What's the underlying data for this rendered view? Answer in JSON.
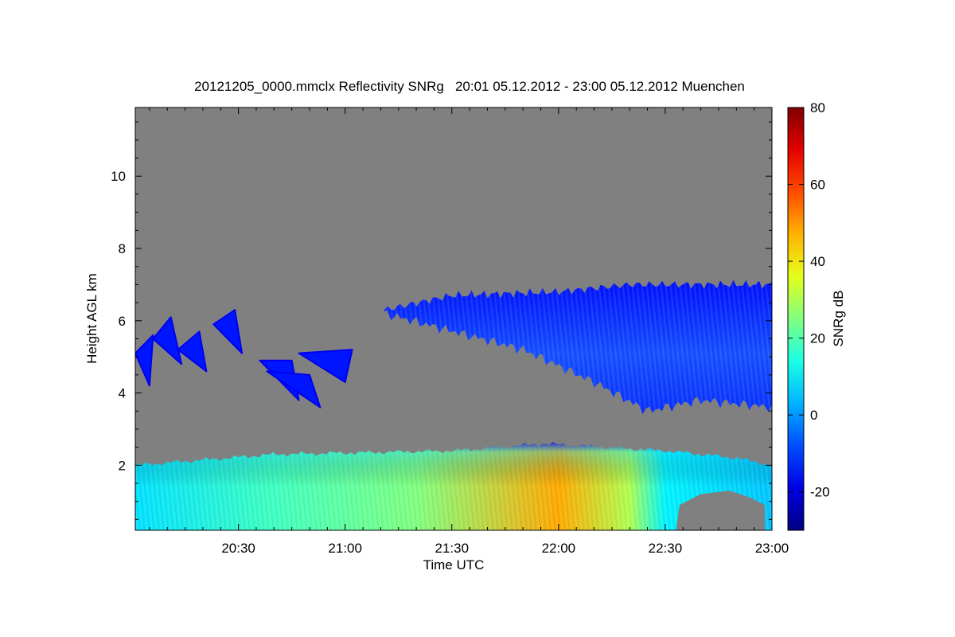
{
  "chart_data": {
    "type": "heatmap",
    "title": "20121205_0000.mmclx Reflectivity SNRg   20:01 05.12.2012 - 23:00 05.12.2012 Muenchen",
    "xlabel": "Time UTC",
    "ylabel": "Height AGL km",
    "colorbar_label": "SNRg dB",
    "x_range_minutes_utc": [
      1201,
      1380
    ],
    "y_range_km": [
      0.2,
      11.9
    ],
    "x_ticks": [
      {
        "value": 1230,
        "label": "20:30"
      },
      {
        "value": 1260,
        "label": "21:00"
      },
      {
        "value": 1290,
        "label": "21:30"
      },
      {
        "value": 1320,
        "label": "22:00"
      },
      {
        "value": 1350,
        "label": "22:30"
      },
      {
        "value": 1380,
        "label": "23:00"
      }
    ],
    "y_ticks": [
      {
        "value": 2,
        "label": "2"
      },
      {
        "value": 4,
        "label": "4"
      },
      {
        "value": 6,
        "label": "6"
      },
      {
        "value": 8,
        "label": "8"
      },
      {
        "value": 10,
        "label": "10"
      }
    ],
    "colorbar_range": [
      -30,
      80
    ],
    "colorbar_ticks": [
      {
        "value": -20,
        "label": "-20"
      },
      {
        "value": 0,
        "label": "0"
      },
      {
        "value": 20,
        "label": "20"
      },
      {
        "value": 40,
        "label": "40"
      },
      {
        "value": 60,
        "label": "60"
      },
      {
        "value": 80,
        "label": "80"
      }
    ],
    "colormap": "jet",
    "background_color": "#808080",
    "features": [
      {
        "name": "low-level echo layer",
        "time_from": 1201,
        "time_to": 1380,
        "top_km": [
          [
            1201,
            2.0
          ],
          [
            1240,
            2.3
          ],
          [
            1290,
            2.4
          ],
          [
            1316,
            2.6
          ],
          [
            1350,
            2.4
          ],
          [
            1370,
            2.2
          ],
          [
            1380,
            2.0
          ]
        ],
        "snr_db": [
          [
            1201,
            8
          ],
          [
            1240,
            18
          ],
          [
            1280,
            25
          ],
          [
            1320,
            48
          ],
          [
            1340,
            30
          ],
          [
            1350,
            10
          ],
          [
            1380,
            5
          ]
        ]
      },
      {
        "name": "mid-level cloud",
        "time_from": 1271,
        "time_to": 1380,
        "top_km": [
          [
            1271,
            6.3
          ],
          [
            1290,
            6.7
          ],
          [
            1320,
            6.8
          ],
          [
            1340,
            7.0
          ],
          [
            1380,
            7.0
          ]
        ],
        "base_km": [
          [
            1271,
            6.2
          ],
          [
            1310,
            5.2
          ],
          [
            1330,
            4.3
          ],
          [
            1345,
            3.5
          ],
          [
            1360,
            3.8
          ],
          [
            1380,
            3.6
          ]
        ],
        "snr_db": [
          [
            1271,
            -15
          ],
          [
            1330,
            -5
          ],
          [
            1370,
            -10
          ]
        ]
      },
      {
        "name": "patchy echoes",
        "time_from": 1201,
        "time_to": 1265,
        "height_km": [
          3.5,
          6.2
        ],
        "snr_db": [
          [
            1201,
            -15
          ],
          [
            1240,
            -10
          ],
          [
            1262,
            -15
          ]
        ]
      }
    ]
  }
}
